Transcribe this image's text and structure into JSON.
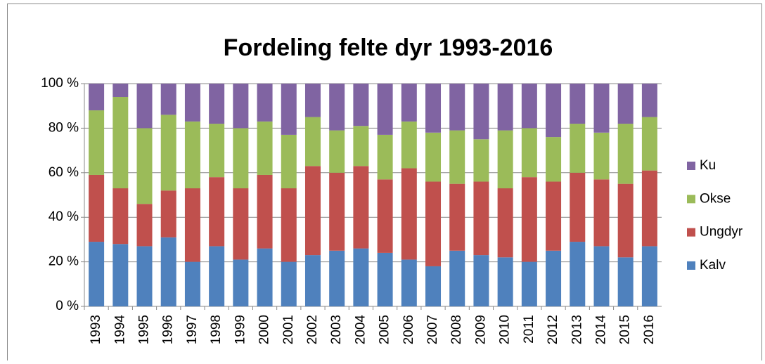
{
  "chart_data": {
    "type": "stacked_bar",
    "title": "Fordeling felte dyr 1993-2016",
    "categories": [
      "1993",
      "1994",
      "1995",
      "1996",
      "1997",
      "1998",
      "1999",
      "2000",
      "2001",
      "2002",
      "2003",
      "2004",
      "2005",
      "2006",
      "2007",
      "2008",
      "2009",
      "2010",
      "2011",
      "2012",
      "2013",
      "2014",
      "2015",
      "2016"
    ],
    "series": [
      {
        "name": "Kalv",
        "color": "#4f81bd",
        "values": [
          29,
          28,
          27,
          31,
          20,
          27,
          21,
          26,
          20,
          23,
          25,
          26,
          24,
          21,
          18,
          25,
          23,
          22,
          20,
          25,
          29,
          27,
          22,
          27
        ]
      },
      {
        "name": "Ungdyr",
        "color": "#c0504d",
        "values": [
          30,
          25,
          19,
          21,
          33,
          31,
          32,
          33,
          33,
          40,
          35,
          37,
          33,
          41,
          38,
          30,
          33,
          31,
          38,
          31,
          31,
          30,
          33,
          34
        ]
      },
      {
        "name": "Okse",
        "color": "#9bbb59",
        "values": [
          29,
          41,
          34,
          34,
          30,
          24,
          27,
          24,
          24,
          22,
          19,
          18,
          20,
          21,
          22,
          24,
          19,
          26,
          22,
          20,
          22,
          21,
          27,
          24
        ]
      },
      {
        "name": "Ku",
        "color": "#8064a2",
        "values": [
          12,
          6,
          20,
          14,
          17,
          18,
          20,
          17,
          23,
          15,
          21,
          19,
          23,
          17,
          22,
          21,
          25,
          21,
          20,
          24,
          18,
          22,
          18,
          15
        ]
      }
    ],
    "ylim": [
      0,
      100
    ],
    "yticks": [
      {
        "value": 0,
        "label": "0 %"
      },
      {
        "value": 20,
        "label": "20 %"
      },
      {
        "value": 40,
        "label": "40 %"
      },
      {
        "value": 60,
        "label": "60 %"
      },
      {
        "value": 80,
        "label": "80 %"
      },
      {
        "value": 100,
        "label": "100 %"
      }
    ],
    "grid": true,
    "legend": "right"
  }
}
